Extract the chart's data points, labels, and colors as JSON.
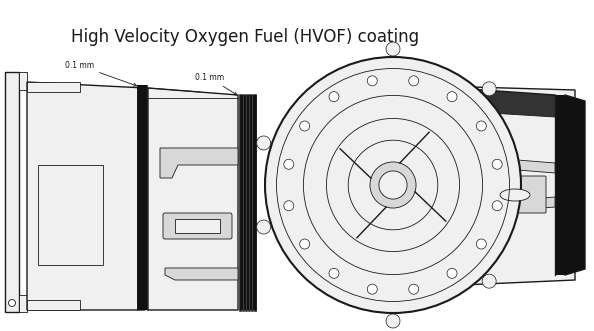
{
  "title": "High Velocity Oxygen Fuel (HVOF) coating",
  "title_fontsize": 12,
  "background_color": "#ffffff",
  "annotation_1": "0.1 mm",
  "annotation_2": "0.1 mm",
  "line_color": "#1a1a1a",
  "black": "#111111",
  "light_gray": "#d8d8d8",
  "very_light_gray": "#f0f0f0",
  "white": "#ffffff"
}
